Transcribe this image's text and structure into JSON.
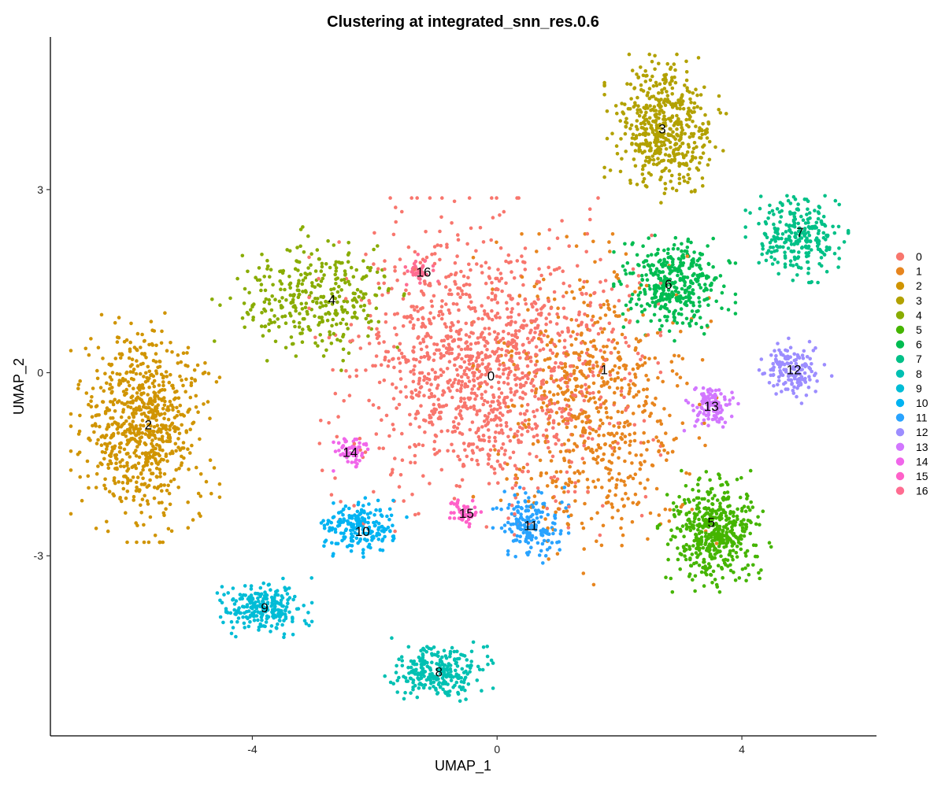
{
  "chart_data": {
    "type": "scatter",
    "title": "Clustering at integrated_snn_res.0.6",
    "xlabel": "UMAP_1",
    "ylabel": "UMAP_2",
    "xlim": [
      -7.3,
      6.2
    ],
    "ylim": [
      -5.95,
      5.5
    ],
    "x_ticks": [
      -4,
      0,
      4
    ],
    "y_ticks": [
      -3,
      0,
      3
    ],
    "x_tick_labels": [
      "-4",
      "0",
      "4"
    ],
    "y_tick_labels": [
      "-3",
      "0",
      "3"
    ],
    "grid": false,
    "legend_position": "right",
    "legend_entries": [
      "0",
      "1",
      "2",
      "3",
      "4",
      "5",
      "6",
      "7",
      "8",
      "9",
      "10",
      "11",
      "12",
      "13",
      "14",
      "15",
      "16"
    ],
    "clusters": [
      {
        "name": "0",
        "color": "#F8766D",
        "label_xy": [
          -0.1,
          -0.05
        ],
        "center": [
          -0.2,
          0.1
        ],
        "spread": [
          1.3,
          1.25
        ],
        "n": 1300
      },
      {
        "name": "1",
        "color": "#E7851E",
        "label_xy": [
          1.75,
          0.05
        ],
        "center": [
          1.6,
          -0.6
        ],
        "spread": [
          0.9,
          1.3
        ],
        "n": 650
      },
      {
        "name": "2",
        "color": "#D09400",
        "label_xy": [
          -5.7,
          -0.85
        ],
        "center": [
          -5.75,
          -0.9
        ],
        "spread": [
          0.55,
          0.85
        ],
        "n": 750
      },
      {
        "name": "3",
        "color": "#B2A100",
        "label_xy": [
          2.7,
          4.0
        ],
        "center": [
          2.75,
          4.0
        ],
        "spread": [
          0.45,
          0.55
        ],
        "n": 500
      },
      {
        "name": "4",
        "color": "#89AC00",
        "label_xy": [
          -2.7,
          1.2
        ],
        "center": [
          -3.0,
          1.2
        ],
        "spread": [
          0.75,
          0.55
        ],
        "n": 330
      },
      {
        "name": "5",
        "color": "#45B500",
        "label_xy": [
          3.5,
          -2.45
        ],
        "center": [
          3.55,
          -2.6
        ],
        "spread": [
          0.42,
          0.45
        ],
        "n": 480
      },
      {
        "name": "6",
        "color": "#00BC51",
        "label_xy": [
          2.8,
          1.45
        ],
        "center": [
          2.9,
          1.45
        ],
        "spread": [
          0.45,
          0.42
        ],
        "n": 380
      },
      {
        "name": "7",
        "color": "#00C087",
        "label_xy": [
          4.95,
          2.3
        ],
        "center": [
          4.9,
          2.25
        ],
        "spread": [
          0.38,
          0.35
        ],
        "n": 260
      },
      {
        "name": "8",
        "color": "#00C0B2",
        "label_xy": [
          -0.95,
          -4.9
        ],
        "center": [
          -0.95,
          -4.9
        ],
        "spread": [
          0.4,
          0.25
        ],
        "n": 260
      },
      {
        "name": "9",
        "color": "#00BCD6",
        "label_xy": [
          -3.8,
          -3.85
        ],
        "center": [
          -3.8,
          -3.85
        ],
        "spread": [
          0.35,
          0.22
        ],
        "n": 240
      },
      {
        "name": "10",
        "color": "#00B3F2",
        "label_xy": [
          -2.2,
          -2.6
        ],
        "center": [
          -2.25,
          -2.55
        ],
        "spread": [
          0.35,
          0.25
        ],
        "n": 200
      },
      {
        "name": "11",
        "color": "#29A3FF",
        "label_xy": [
          0.55,
          -2.5
        ],
        "center": [
          0.55,
          -2.5
        ],
        "spread": [
          0.28,
          0.28
        ],
        "n": 170
      },
      {
        "name": "12",
        "color": "#9C8DFF",
        "label_xy": [
          4.85,
          0.05
        ],
        "center": [
          4.85,
          0.05
        ],
        "spread": [
          0.28,
          0.25
        ],
        "n": 150
      },
      {
        "name": "13",
        "color": "#D277FF",
        "label_xy": [
          3.5,
          -0.55
        ],
        "center": [
          3.5,
          -0.55
        ],
        "spread": [
          0.2,
          0.2
        ],
        "n": 110
      },
      {
        "name": "14",
        "color": "#F066EA",
        "label_xy": [
          -2.4,
          -1.3
        ],
        "center": [
          -2.4,
          -1.3
        ],
        "spread": [
          0.14,
          0.14
        ],
        "n": 60
      },
      {
        "name": "15",
        "color": "#FF61C9",
        "label_xy": [
          -0.5,
          -2.3
        ],
        "center": [
          -0.55,
          -2.3
        ],
        "spread": [
          0.14,
          0.12
        ],
        "n": 50
      },
      {
        "name": "16",
        "color": "#FF6C91",
        "label_xy": [
          -1.2,
          1.65
        ],
        "center": [
          -1.25,
          1.65
        ],
        "spread": [
          0.13,
          0.13
        ],
        "n": 40
      }
    ]
  }
}
